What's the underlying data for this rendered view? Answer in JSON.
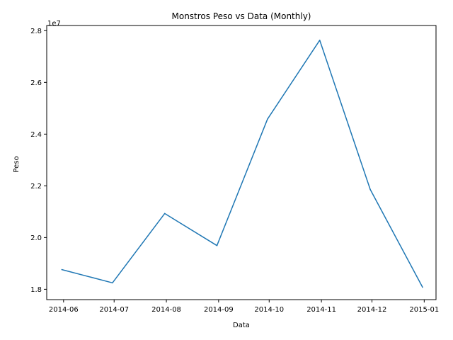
{
  "chart_data": {
    "type": "line",
    "title": "Monstros Peso vs Data (Monthly)",
    "xlabel": "Data",
    "ylabel": "Peso",
    "offset_label": "1e7",
    "x_ticks": [
      "2014-06",
      "2014-07",
      "2014-08",
      "2014-09",
      "2014-10",
      "2014-11",
      "2014-12",
      "2015-01"
    ],
    "y_ticks": [
      "1.8",
      "2.0",
      "2.2",
      "2.4",
      "2.6",
      "2.8"
    ],
    "ylim": [
      17600000,
      28200000
    ],
    "xlim": [
      "2014-05-22",
      "2015-01-08"
    ],
    "grid": false,
    "series": [
      {
        "color": "#1f77b4",
        "x": [
          "2014-05-31",
          "2014-06-30",
          "2014-07-31",
          "2014-08-31",
          "2014-09-30",
          "2014-10-31",
          "2014-11-30",
          "2014-12-31"
        ],
        "y": [
          18760000,
          18250000,
          20930000,
          19690000,
          24580000,
          27630000,
          21860000,
          18080000
        ]
      }
    ]
  }
}
